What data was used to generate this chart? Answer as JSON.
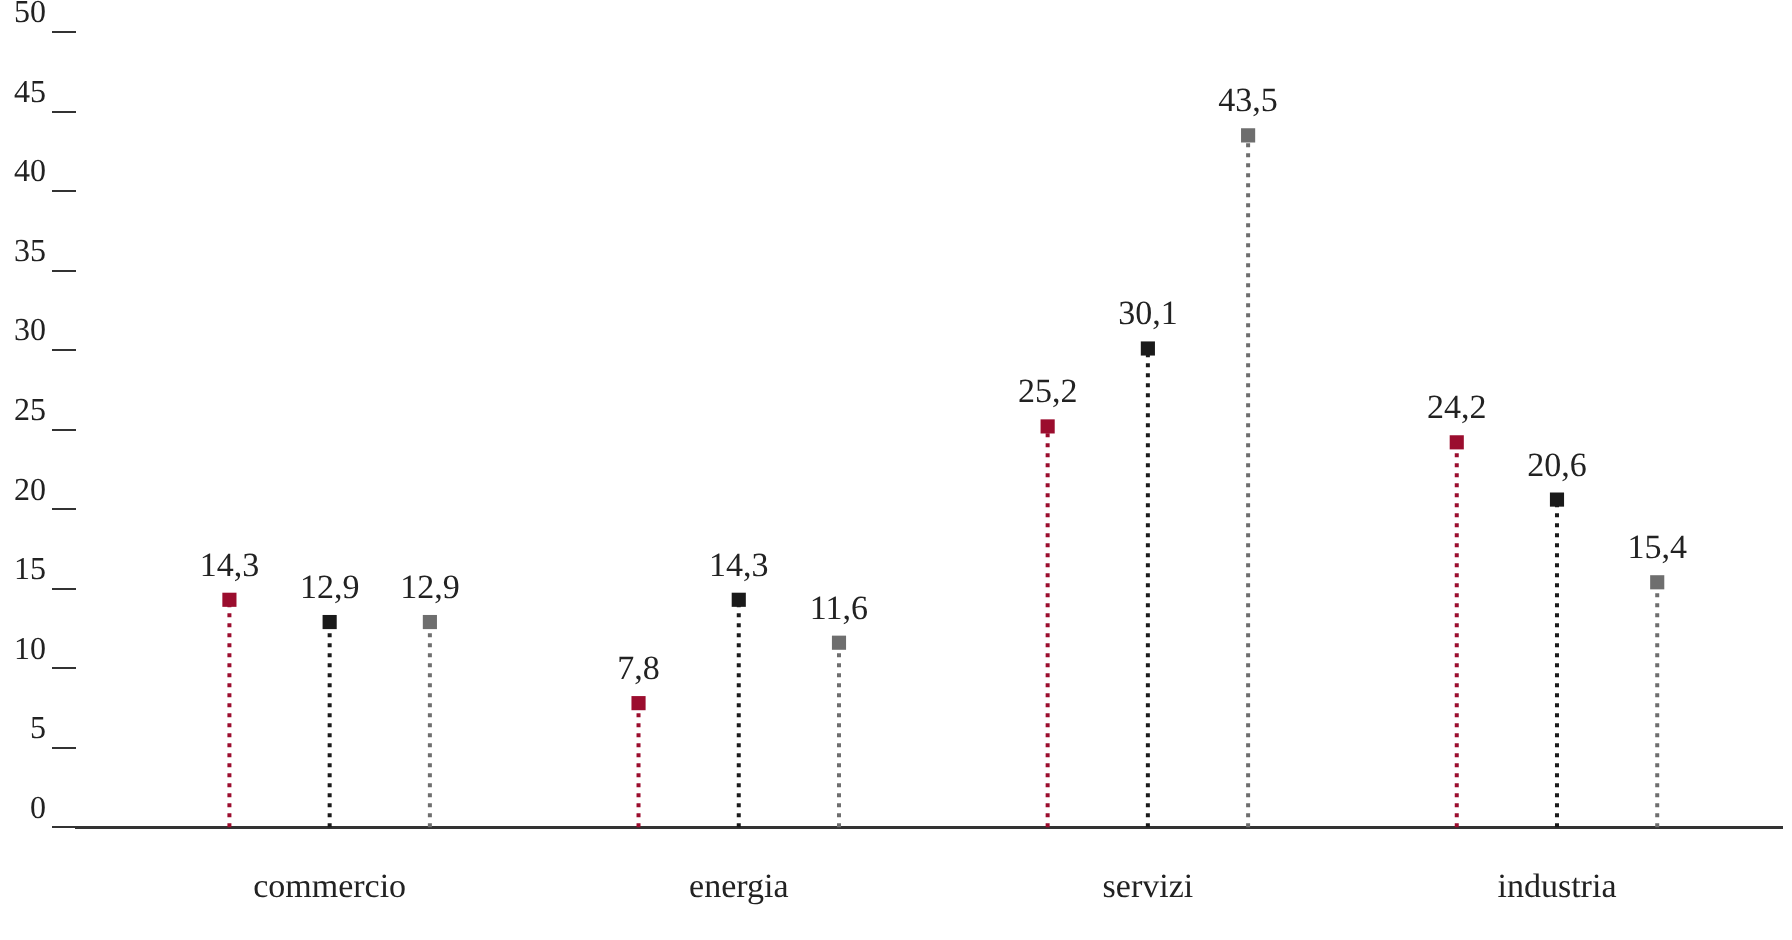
{
  "chart_data": {
    "type": "lollipop",
    "categories": [
      "commercio",
      "energia",
      "servizi",
      "industria"
    ],
    "series": [
      {
        "color": "#9b0d2e",
        "values": [
          14.3,
          7.8,
          25.2,
          24.2
        ],
        "value_labels": [
          "14,3",
          "7,8",
          "25,2",
          "24,2"
        ]
      },
      {
        "color": "#1a1a1a",
        "values": [
          12.9,
          14.3,
          30.1,
          20.6
        ],
        "value_labels": [
          "12,9",
          "14,3",
          "30,1",
          "20,6"
        ]
      },
      {
        "color": "#6e6e6e",
        "values": [
          12.9,
          11.6,
          43.5,
          15.4
        ],
        "value_labels": [
          "12,9",
          "11,6",
          "43,5",
          "15,4"
        ]
      }
    ],
    "ylim": [
      0,
      50
    ],
    "yticks": [
      0,
      5,
      10,
      15,
      20,
      25,
      30,
      35,
      40,
      45,
      50
    ],
    "grid": false,
    "legend": false,
    "marker": "square",
    "line_style": "dotted"
  }
}
